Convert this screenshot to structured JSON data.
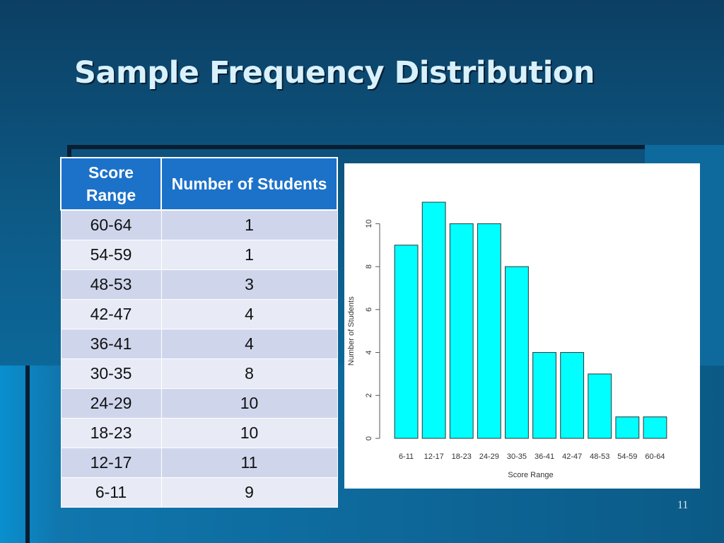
{
  "slide": {
    "title": "Sample Frequency Distribution",
    "page_number": "11"
  },
  "table": {
    "headers": [
      "Score Range",
      "Number of Students"
    ],
    "rows": [
      [
        "60-64",
        "1"
      ],
      [
        "54-59",
        "1"
      ],
      [
        "48-53",
        "3"
      ],
      [
        "42-47",
        "4"
      ],
      [
        "36-41",
        "4"
      ],
      [
        "30-35",
        "8"
      ],
      [
        "24-29",
        "10"
      ],
      [
        "18-23",
        "10"
      ],
      [
        "12-17",
        "11"
      ],
      [
        "6-11",
        "9"
      ]
    ]
  },
  "chart_data": {
    "type": "bar",
    "title": "",
    "xlabel": "Score Range",
    "ylabel": "Number of Students",
    "categories": [
      "6-11",
      "12-17",
      "18-23",
      "24-29",
      "30-35",
      "36-41",
      "42-47",
      "48-53",
      "54-59",
      "60-64"
    ],
    "values": [
      9,
      11,
      10,
      10,
      8,
      4,
      4,
      3,
      1,
      1
    ],
    "yticks": [
      0,
      2,
      4,
      6,
      8,
      10
    ],
    "ylim": [
      0,
      11
    ],
    "grid": false,
    "bar_color": "#00ffff",
    "bar_edge_color": "#333333"
  }
}
